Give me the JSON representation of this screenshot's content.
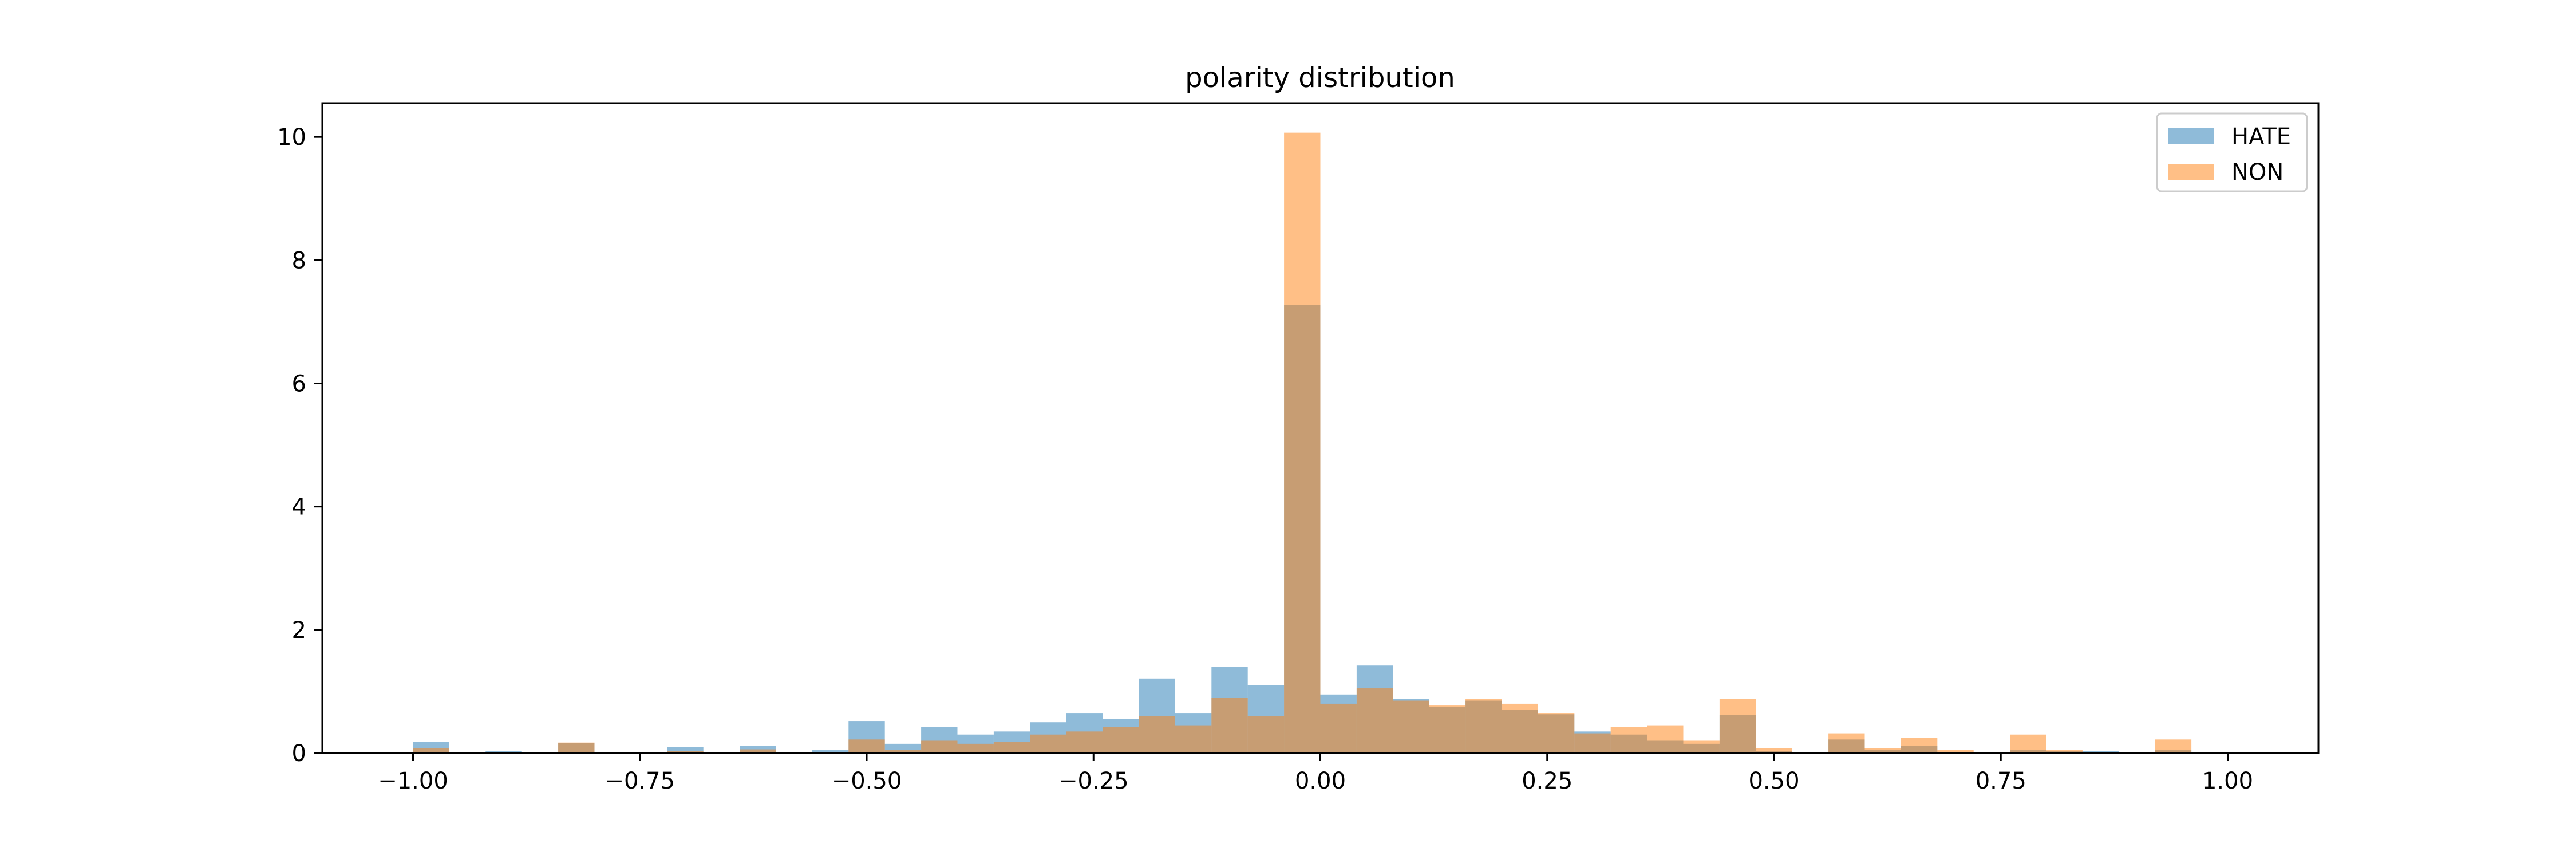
{
  "chart_data": {
    "type": "bar",
    "subtype": "overlapping-histogram",
    "title": "polarity distribution",
    "xlabel": "",
    "ylabel": "",
    "xlim": [
      -1.1,
      1.1
    ],
    "ylim": [
      0,
      10.55
    ],
    "xticks": [
      -1.0,
      -0.75,
      -0.5,
      -0.25,
      0.0,
      0.25,
      0.5,
      0.75,
      1.0
    ],
    "xtick_labels": [
      "−1.00",
      "−0.75",
      "−0.50",
      "−0.25",
      "0.00",
      "0.25",
      "0.50",
      "0.75",
      "1.00"
    ],
    "yticks": [
      0,
      2,
      4,
      6,
      8,
      10
    ],
    "ytick_labels": [
      "0",
      "2",
      "4",
      "6",
      "8",
      "10"
    ],
    "grid": false,
    "legend_position": "top-right",
    "bin_edges": [
      -1.0,
      -0.96,
      -0.92,
      -0.88,
      -0.84,
      -0.8,
      -0.76,
      -0.72,
      -0.68,
      -0.64,
      -0.6,
      -0.56,
      -0.52,
      -0.48,
      -0.44,
      -0.4,
      -0.36,
      -0.32,
      -0.28,
      -0.24,
      -0.2,
      -0.16,
      -0.12,
      -0.08,
      -0.04,
      0.0,
      0.04,
      0.08,
      0.12,
      0.16,
      0.2,
      0.24,
      0.28,
      0.32,
      0.36,
      0.4,
      0.44,
      0.48,
      0.52,
      0.56,
      0.6,
      0.64,
      0.68,
      0.72,
      0.76,
      0.8,
      0.84,
      0.88,
      0.92,
      0.96,
      1.0
    ],
    "series": [
      {
        "name": "HATE",
        "color": "#1f77b4",
        "alpha": 0.5,
        "values": [
          0.18,
          0.0,
          0.03,
          0.0,
          0.16,
          0.0,
          0.0,
          0.1,
          0.0,
          0.12,
          0.0,
          0.05,
          0.52,
          0.15,
          0.42,
          0.3,
          0.35,
          0.5,
          0.65,
          0.55,
          1.21,
          0.65,
          1.4,
          1.1,
          7.27,
          0.95,
          1.42,
          0.88,
          0.75,
          0.85,
          0.7,
          0.63,
          0.35,
          0.3,
          0.2,
          0.15,
          0.62,
          0.03,
          0.0,
          0.22,
          0.05,
          0.12,
          0.0,
          0.0,
          0.05,
          0.03,
          0.03,
          0.0,
          0.05,
          0.0
        ]
      },
      {
        "name": "NON",
        "color": "#ff7f0e",
        "alpha": 0.5,
        "values": [
          0.08,
          0.0,
          0.0,
          0.0,
          0.17,
          0.0,
          0.0,
          0.03,
          0.0,
          0.06,
          0.0,
          0.0,
          0.22,
          0.05,
          0.2,
          0.15,
          0.18,
          0.3,
          0.35,
          0.42,
          0.6,
          0.45,
          0.9,
          0.6,
          10.07,
          0.8,
          1.05,
          0.85,
          0.78,
          0.88,
          0.8,
          0.65,
          0.32,
          0.42,
          0.45,
          0.2,
          0.88,
          0.08,
          0.0,
          0.32,
          0.08,
          0.25,
          0.05,
          0.0,
          0.3,
          0.05,
          0.0,
          0.0,
          0.22,
          0.0
        ]
      }
    ]
  }
}
